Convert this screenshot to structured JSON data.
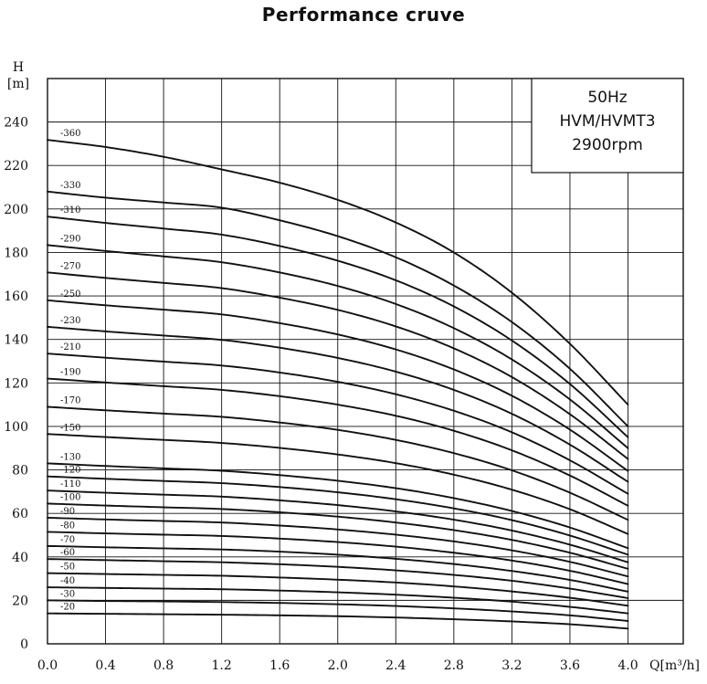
{
  "title": "Performance cruve",
  "chart_data": {
    "type": "line",
    "title": "Performance cruve",
    "xlabel": "Q[m³/h]",
    "ylabel": "H [m]",
    "ylabel_lines": [
      "H",
      "[m]"
    ],
    "xlim": [
      0,
      4.0
    ],
    "ylim": [
      0,
      260
    ],
    "grid": true,
    "x_ticks": [
      "0.0",
      "0.4",
      "0.8",
      "1.2",
      "1.6",
      "2.0",
      "2.4",
      "2.8",
      "3.2",
      "3.6",
      "4.0"
    ],
    "y_ticks": [
      "0",
      "20",
      "40",
      "60",
      "80",
      "100",
      "120",
      "140",
      "160",
      "180",
      "200",
      "220",
      "240"
    ],
    "x": [
      0.0,
      0.4,
      0.8,
      1.2,
      1.6,
      2.0,
      2.4,
      2.8,
      3.2,
      3.6,
      4.0
    ],
    "info_box": [
      "50Hz",
      "HVM/HVMT3",
      "2900rpm"
    ],
    "series": [
      {
        "name": "-360",
        "values": [
          231.8,
          228.5,
          224.0,
          218.2,
          212.1,
          204.2,
          193.8,
          180.0,
          161.5,
          138.0,
          110.0
        ]
      },
      {
        "name": "-330",
        "values": [
          208.0,
          205.2,
          203.0,
          200.6,
          194.8,
          187.5,
          177.8,
          164.8,
          148.0,
          126.5,
          100.0
        ]
      },
      {
        "name": "-310",
        "values": [
          196.5,
          193.6,
          191.0,
          188.2,
          183.0,
          176.2,
          167.2,
          155.2,
          139.5,
          119.5,
          95.0
        ]
      },
      {
        "name": "-290",
        "values": [
          183.4,
          180.7,
          178.2,
          175.5,
          170.8,
          164.6,
          156.3,
          145.2,
          130.8,
          112.4,
          90.0
        ]
      },
      {
        "name": "-270",
        "values": [
          170.8,
          168.3,
          166.0,
          163.6,
          159.2,
          153.6,
          146.0,
          135.9,
          122.7,
          105.6,
          85.0
        ]
      },
      {
        "name": "-250",
        "values": [
          158.0,
          155.7,
          153.7,
          151.5,
          147.5,
          142.3,
          135.4,
          126.2,
          114.1,
          98.5,
          79.5
        ]
      },
      {
        "name": "-230",
        "values": [
          145.8,
          143.7,
          141.8,
          139.8,
          136.2,
          131.5,
          125.2,
          116.8,
          105.8,
          91.6,
          74.5
        ]
      },
      {
        "name": "-210",
        "values": [
          133.5,
          131.6,
          129.8,
          128.0,
          124.8,
          120.5,
          114.8,
          107.2,
          97.3,
          84.4,
          69.0
        ]
      },
      {
        "name": "-190",
        "values": [
          122.0,
          120.2,
          118.5,
          116.8,
          113.9,
          110.0,
          104.9,
          98.0,
          89.0,
          77.4,
          63.5
        ]
      },
      {
        "name": "-170",
        "values": [
          109.0,
          107.4,
          105.9,
          104.4,
          101.8,
          98.4,
          93.8,
          87.7,
          79.8,
          69.5,
          57.0
        ]
      },
      {
        "name": "-150",
        "values": [
          96.5,
          95.1,
          93.8,
          92.4,
          90.1,
          87.1,
          83.1,
          77.8,
          70.9,
          61.9,
          50.5
        ]
      },
      {
        "name": "-130",
        "values": [
          83.0,
          81.8,
          80.7,
          79.6,
          77.6,
          75.0,
          71.6,
          67.0,
          61.1,
          53.5,
          44.0
        ]
      },
      {
        "name": "-120",
        "values": [
          77.0,
          75.9,
          74.9,
          73.9,
          72.1,
          69.7,
          66.5,
          62.3,
          56.9,
          49.8,
          41.0
        ]
      },
      {
        "name": "-110",
        "values": [
          70.5,
          69.5,
          68.6,
          67.7,
          66.0,
          63.8,
          60.9,
          57.1,
          52.1,
          45.6,
          37.5
        ]
      },
      {
        "name": "-100",
        "values": [
          64.5,
          63.6,
          62.8,
          62.0,
          60.5,
          58.5,
          55.8,
          52.3,
          47.8,
          41.9,
          34.5
        ]
      },
      {
        "name": "-90",
        "values": [
          58.0,
          57.2,
          56.5,
          55.8,
          54.4,
          52.6,
          50.2,
          47.1,
          43.0,
          37.7,
          31.0
        ]
      },
      {
        "name": "-80",
        "values": [
          51.5,
          50.8,
          50.2,
          49.6,
          48.4,
          46.8,
          44.7,
          41.9,
          38.3,
          33.6,
          27.5
        ]
      },
      {
        "name": "-70",
        "values": [
          45.0,
          44.4,
          43.9,
          43.4,
          42.4,
          41.0,
          39.1,
          36.7,
          33.5,
          29.4,
          24.0
        ]
      },
      {
        "name": "-60",
        "values": [
          39.0,
          38.5,
          38.0,
          37.5,
          36.6,
          35.4,
          33.8,
          31.7,
          29.0,
          25.4,
          21.0
        ]
      },
      {
        "name": "-50",
        "values": [
          32.5,
          32.1,
          31.7,
          31.3,
          30.5,
          29.5,
          28.2,
          26.4,
          24.1,
          21.2,
          17.5
        ]
      },
      {
        "name": "-40",
        "values": [
          26.0,
          25.7,
          25.4,
          25.1,
          24.5,
          23.7,
          22.6,
          21.2,
          19.4,
          17.0,
          14.0
        ]
      },
      {
        "name": "-30",
        "values": [
          20.0,
          19.7,
          19.5,
          19.2,
          18.8,
          18.2,
          17.4,
          16.3,
          14.9,
          13.1,
          10.5
        ]
      },
      {
        "name": "-20",
        "values": [
          14.0,
          13.8,
          13.6,
          13.4,
          13.1,
          12.7,
          12.1,
          11.3,
          10.3,
          9.0,
          7.0
        ]
      }
    ]
  }
}
